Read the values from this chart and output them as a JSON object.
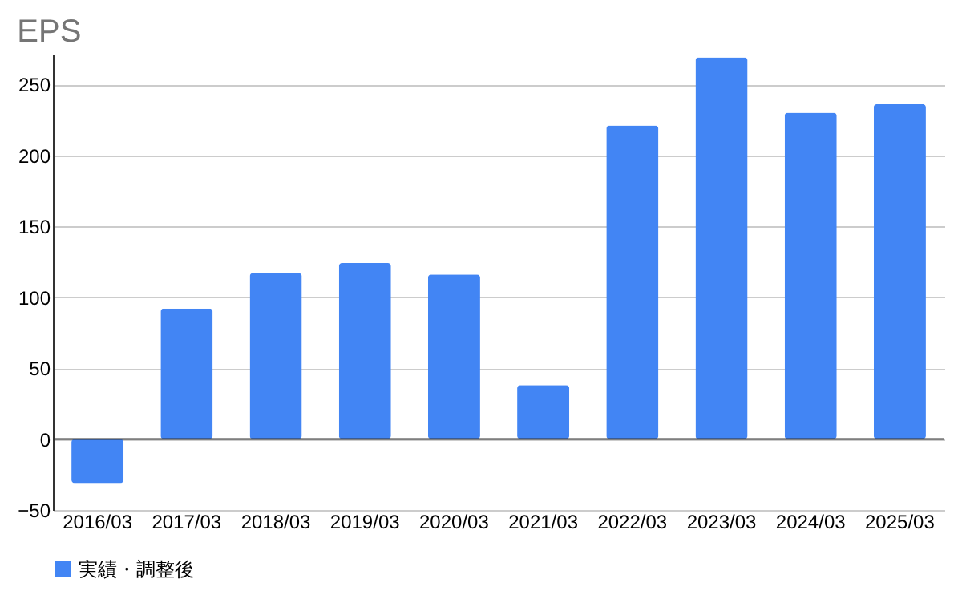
{
  "chart_data": {
    "type": "bar",
    "title": "EPS",
    "categories": [
      "2016/03",
      "2017/03",
      "2018/03",
      "2019/03",
      "2020/03",
      "2021/03",
      "2022/03",
      "2023/03",
      "2024/03",
      "2025/03"
    ],
    "series": [
      {
        "name": "実績・調整後",
        "color": "#4285f4",
        "values": [
          -31,
          92,
          117,
          124,
          116,
          38,
          221,
          269,
          230,
          236
        ]
      }
    ],
    "ylim": [
      -50,
      271
    ],
    "yticks": [
      -50,
      0,
      50,
      100,
      150,
      200,
      250
    ],
    "grid": "y",
    "legend": "bottom"
  }
}
